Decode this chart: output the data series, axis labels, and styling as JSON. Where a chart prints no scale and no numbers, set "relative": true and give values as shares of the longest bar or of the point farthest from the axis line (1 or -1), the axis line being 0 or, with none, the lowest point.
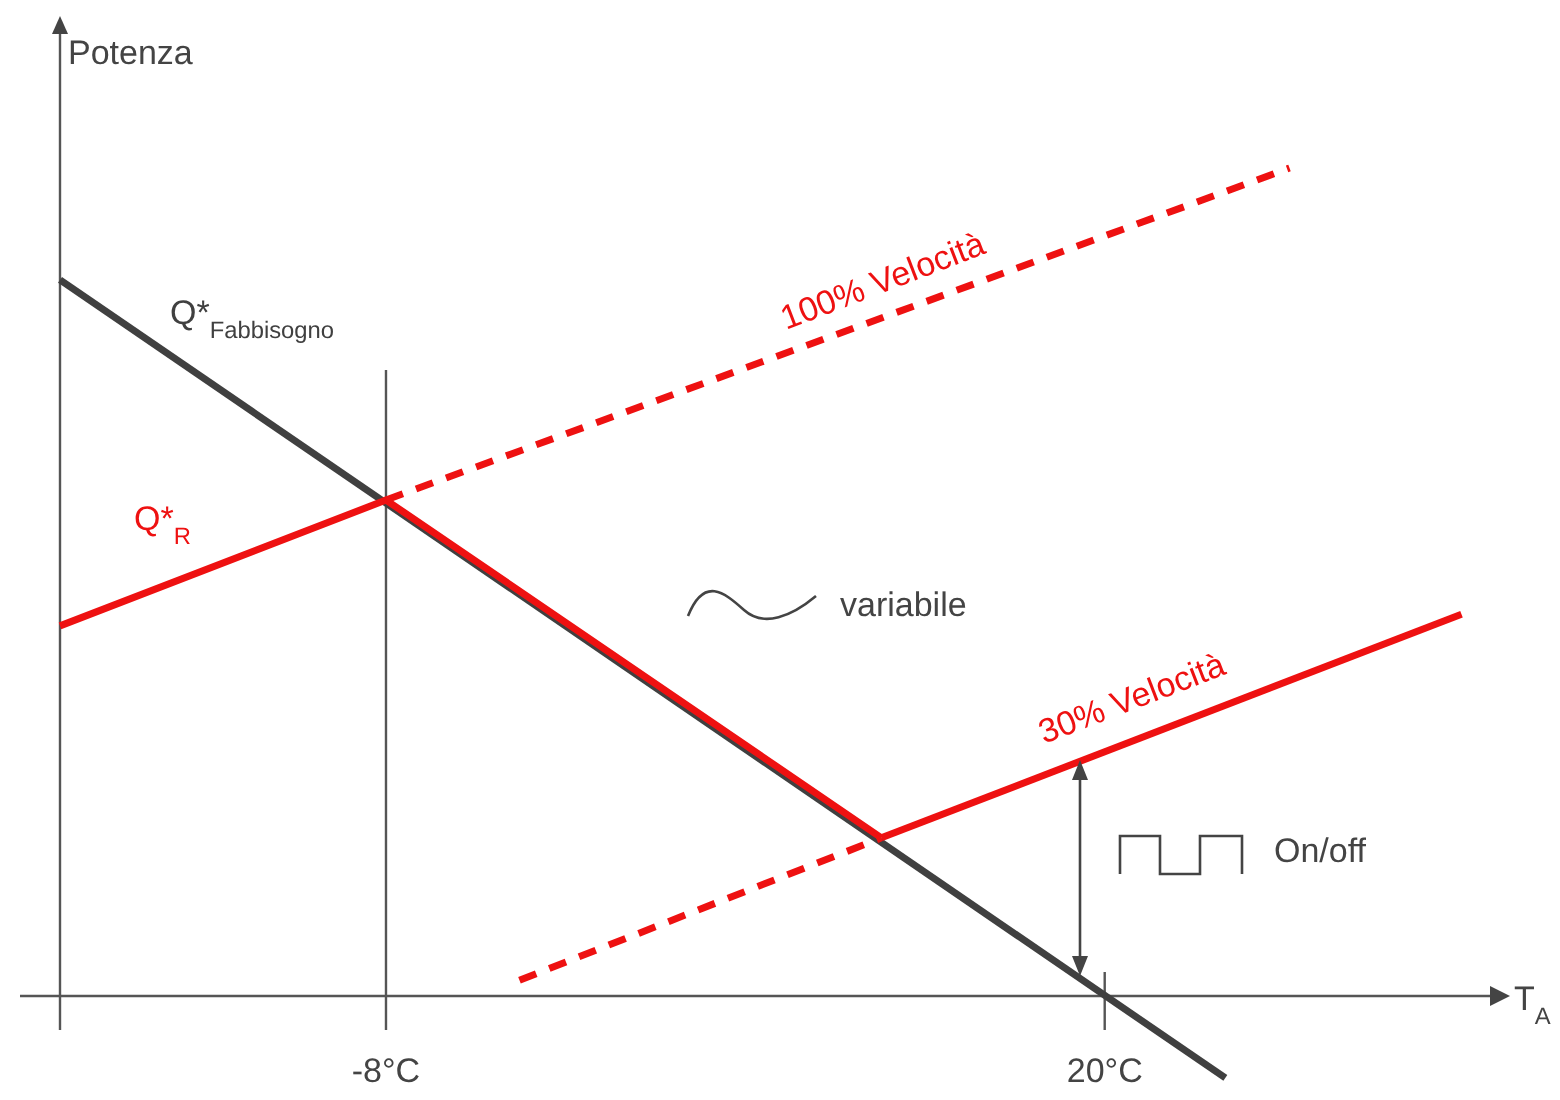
{
  "chart_data": {
    "type": "line",
    "relative": true,
    "xlabel": "T$_{A}$",
    "ylabel": "Potenza",
    "xlim": [
      -20.7,
      35.4
    ],
    "xticks": [
      {
        "value": -8,
        "label": "-8°C"
      },
      {
        "value": 20,
        "label": "20°C"
      }
    ],
    "ref_lines": [
      {
        "axis": "x",
        "value": -8,
        "label": null,
        "color": "#555555"
      }
    ],
    "annotations": [
      "variabile",
      "On/off"
    ],
    "series": [
      {
        "name": "Q*$_{Fabbisogno}$",
        "color": "#404040",
        "line_style": "solid",
        "x": [
          -20.7,
          24.7
        ],
        "values": [
          0.865,
          -0.099
        ]
      },
      {
        "name": "Q*$_{R}$",
        "color": "#ee1111",
        "line_style": "solid",
        "x": [
          -20.7,
          -8,
          11.3
        ],
        "values": [
          0.447,
          0.599,
          0.191
        ]
      },
      {
        "name": "100% Velocità",
        "color": "#ee1111",
        "line_style": "dashed",
        "x": [
          -8,
          27.2
        ],
        "values": [
          0.599,
          1
        ]
      },
      {
        "name": "30% Velocità",
        "color": "#ee1111",
        "line_style": "solid",
        "x": [
          11.3,
          33.9
        ],
        "values": [
          0.191,
          0.461
        ]
      },
      {
        "color": "#ee1111",
        "line_style": "dashed",
        "x": [
          -2.8,
          11.3
        ],
        "values": [
          0.019,
          0.191
        ]
      }
    ]
  }
}
